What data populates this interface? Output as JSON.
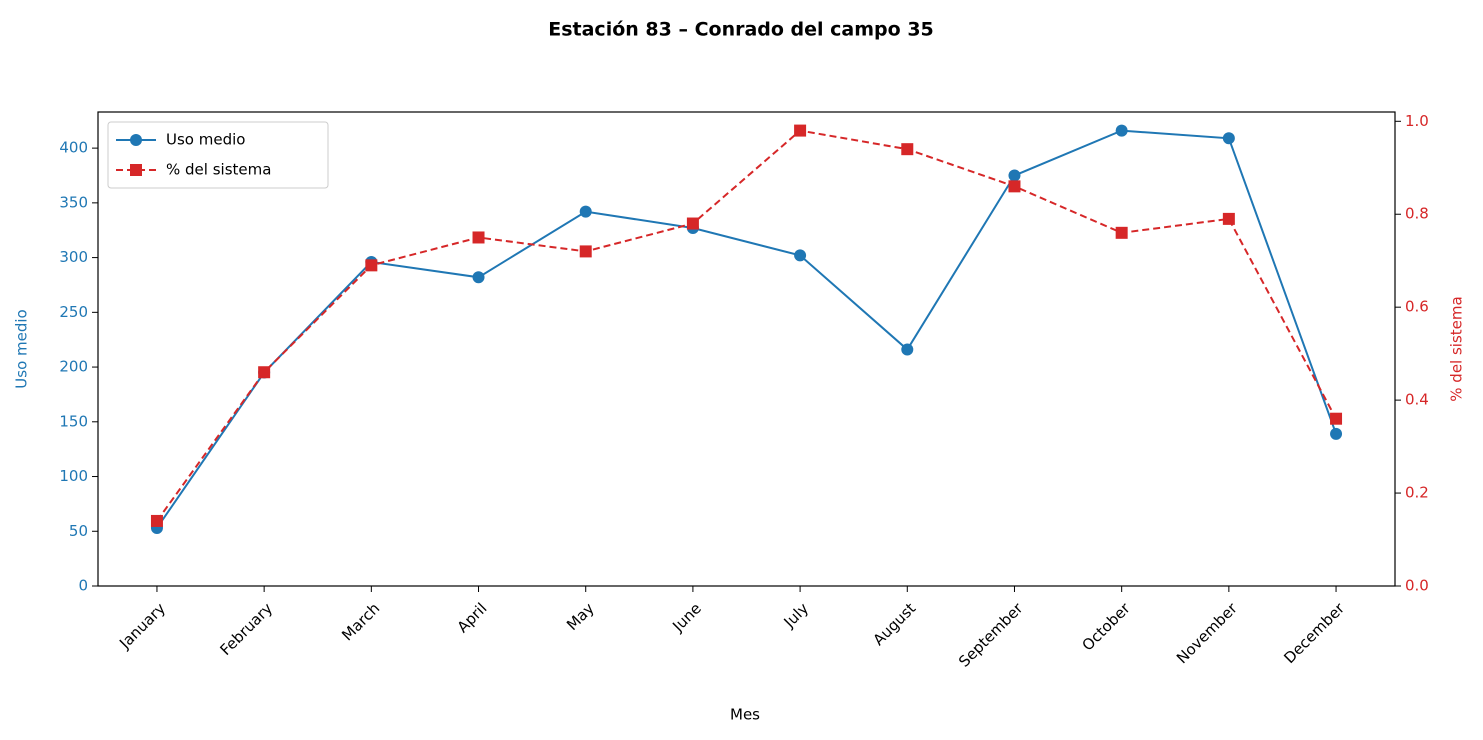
{
  "chart_data": {
    "type": "line",
    "title": "Estación 83 – Conrado del campo 35",
    "xlabel": "Mes",
    "ylabel": "Uso medio",
    "y2label": "% del sistema",
    "categories": [
      "January",
      "February",
      "March",
      "April",
      "May",
      "June",
      "July",
      "August",
      "September",
      "October",
      "November",
      "December"
    ],
    "series": [
      {
        "name": "Uso medio",
        "color": "#1f77b4",
        "marker": "circle",
        "dash": "solid",
        "values": [
          53,
          195,
          296,
          282,
          342,
          327,
          302,
          216,
          375,
          416,
          409,
          139
        ]
      },
      {
        "name": "% del sistema",
        "color": "#d62728",
        "marker": "square",
        "dash": "dashed",
        "axis": "y2",
        "values": [
          0.14,
          0.46,
          0.69,
          0.75,
          0.72,
          0.78,
          0.98,
          0.94,
          0.86,
          0.76,
          0.79,
          0.36
        ]
      }
    ],
    "ylim": [
      0,
      433
    ],
    "yticks": [
      0,
      50,
      100,
      150,
      200,
      250,
      300,
      350,
      400
    ],
    "y2lim": [
      0,
      1.02
    ],
    "y2ticks": [
      {
        "value": 0,
        "label": "0.0"
      },
      0.2,
      0.4,
      0.6,
      0.8,
      {
        "value": 1,
        "label": "1.0"
      }
    ],
    "legend": "upper left",
    "grid": false
  }
}
